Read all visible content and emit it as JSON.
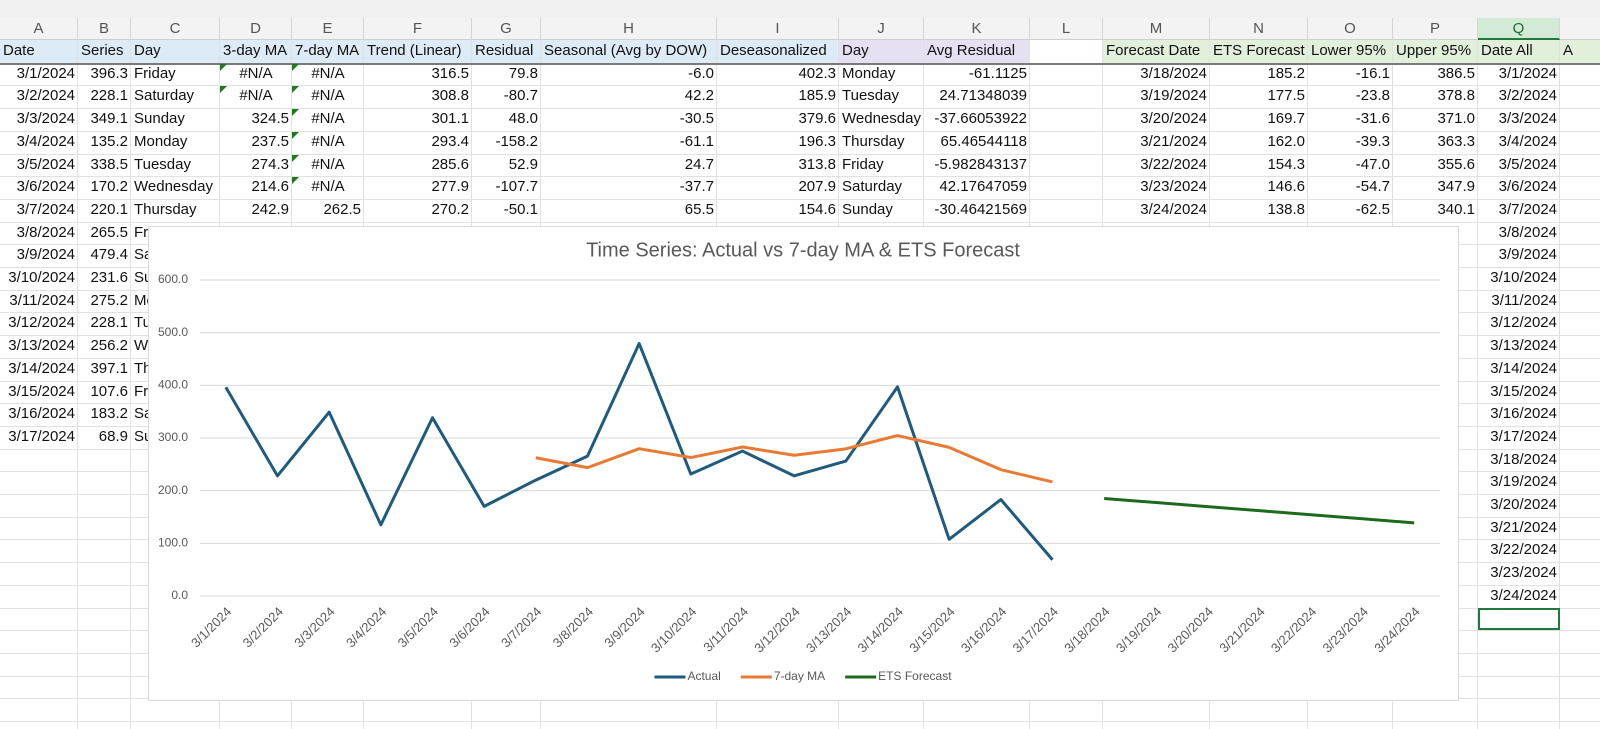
{
  "sheet": {
    "columns": [
      "A",
      "B",
      "C",
      "D",
      "E",
      "F",
      "G",
      "H",
      "I",
      "J",
      "K",
      "L",
      "M",
      "N",
      "O",
      "P",
      "Q"
    ],
    "header": [
      "Date",
      "Series",
      "Day",
      "3-day MA",
      "7-day MA",
      "Trend (Linear)",
      "Residual",
      "Seasonal (Avg by DOW)",
      "Deseasonalized",
      "Day",
      "Avg Residual",
      null,
      "Forecast Date",
      "ETS Forecast",
      "Lower 95%",
      "Upper 95%",
      "Date All",
      "A"
    ],
    "rows": [
      [
        "3/1/2024",
        "396.3",
        "Friday",
        "#N/A",
        "#N/A",
        "316.5",
        "79.8",
        "-6.0",
        "402.3",
        "Monday",
        "-61.1125",
        null,
        "3/18/2024",
        "185.2",
        "-16.1",
        "386.5",
        "3/1/2024"
      ],
      [
        "3/2/2024",
        "228.1",
        "Saturday",
        "#N/A",
        "#N/A",
        "308.8",
        "-80.7",
        "42.2",
        "185.9",
        "Tuesday",
        "24.71348039",
        null,
        "3/19/2024",
        "177.5",
        "-23.8",
        "378.8",
        "3/2/2024"
      ],
      [
        "3/3/2024",
        "349.1",
        "Sunday",
        "324.5",
        "#N/A",
        "301.1",
        "48.0",
        "-30.5",
        "379.6",
        "Wednesday",
        "-37.66053922",
        null,
        "3/20/2024",
        "169.7",
        "-31.6",
        "371.0",
        "3/3/2024"
      ],
      [
        "3/4/2024",
        "135.2",
        "Monday",
        "237.5",
        "#N/A",
        "293.4",
        "-158.2",
        "-61.1",
        "196.3",
        "Thursday",
        "65.46544118",
        null,
        "3/21/2024",
        "162.0",
        "-39.3",
        "363.3",
        "3/4/2024"
      ],
      [
        "3/5/2024",
        "338.5",
        "Tuesday",
        "274.3",
        "#N/A",
        "285.6",
        "52.9",
        "24.7",
        "313.8",
        "Friday",
        "-5.982843137",
        null,
        "3/22/2024",
        "154.3",
        "-47.0",
        "355.6",
        "3/5/2024"
      ],
      [
        "3/6/2024",
        "170.2",
        "Wednesday",
        "214.6",
        "#N/A",
        "277.9",
        "-107.7",
        "-37.7",
        "207.9",
        "Saturday",
        "42.17647059",
        null,
        "3/23/2024",
        "146.6",
        "-54.7",
        "347.9",
        "3/6/2024"
      ],
      [
        "3/7/2024",
        "220.1",
        "Thursday",
        "242.9",
        "262.5",
        "270.2",
        "-50.1",
        "65.5",
        "154.6",
        "Sunday",
        "-30.46421569",
        null,
        "3/24/2024",
        "138.8",
        "-62.5",
        "340.1",
        "3/7/2024"
      ],
      [
        "3/8/2024",
        "265.5",
        "Friday",
        null,
        null,
        null,
        null,
        null,
        null,
        null,
        null,
        null,
        null,
        null,
        null,
        null,
        "3/8/2024"
      ],
      [
        "3/9/2024",
        "479.4",
        "Saturday",
        null,
        null,
        null,
        null,
        null,
        null,
        null,
        null,
        null,
        null,
        null,
        null,
        null,
        "3/9/2024"
      ],
      [
        "3/10/2024",
        "231.6",
        "Sunday",
        null,
        null,
        null,
        null,
        null,
        null,
        null,
        null,
        null,
        null,
        null,
        null,
        null,
        "3/10/2024"
      ],
      [
        "3/11/2024",
        "275.2",
        "Monday",
        null,
        null,
        null,
        null,
        null,
        null,
        null,
        null,
        null,
        null,
        null,
        null,
        null,
        "3/11/2024"
      ],
      [
        "3/12/2024",
        "228.1",
        "Tuesday",
        null,
        null,
        null,
        null,
        null,
        null,
        null,
        null,
        null,
        null,
        null,
        null,
        null,
        "3/12/2024"
      ],
      [
        "3/13/2024",
        "256.2",
        "Wednesday",
        null,
        null,
        null,
        null,
        null,
        null,
        null,
        null,
        null,
        null,
        null,
        null,
        null,
        "3/13/2024"
      ],
      [
        "3/14/2024",
        "397.1",
        "Thursday",
        null,
        null,
        null,
        null,
        null,
        null,
        null,
        null,
        null,
        null,
        null,
        null,
        null,
        "3/14/2024"
      ],
      [
        "3/15/2024",
        "107.6",
        "Friday",
        null,
        null,
        null,
        null,
        null,
        null,
        null,
        null,
        null,
        null,
        null,
        null,
        null,
        "3/15/2024"
      ],
      [
        "3/16/2024",
        "183.2",
        "Saturday",
        null,
        null,
        null,
        null,
        null,
        null,
        null,
        null,
        null,
        null,
        null,
        null,
        null,
        "3/16/2024"
      ],
      [
        "3/17/2024",
        "68.9",
        "Sunday",
        null,
        null,
        null,
        null,
        null,
        null,
        null,
        null,
        null,
        null,
        null,
        null,
        null,
        "3/17/2024"
      ],
      [
        null,
        null,
        null,
        null,
        null,
        null,
        null,
        null,
        null,
        null,
        null,
        null,
        null,
        null,
        null,
        null,
        "3/18/2024"
      ],
      [
        null,
        null,
        null,
        null,
        null,
        null,
        null,
        null,
        null,
        null,
        null,
        null,
        null,
        null,
        null,
        null,
        "3/19/2024"
      ],
      [
        null,
        null,
        null,
        null,
        null,
        null,
        null,
        null,
        null,
        null,
        null,
        null,
        null,
        null,
        null,
        null,
        "3/20/2024"
      ],
      [
        null,
        null,
        null,
        null,
        null,
        null,
        null,
        null,
        null,
        null,
        null,
        null,
        null,
        null,
        null,
        null,
        "3/21/2024"
      ],
      [
        null,
        null,
        null,
        null,
        null,
        null,
        null,
        null,
        null,
        null,
        null,
        null,
        null,
        null,
        null,
        null,
        "3/22/2024"
      ],
      [
        null,
        null,
        null,
        null,
        null,
        null,
        null,
        null,
        null,
        null,
        null,
        null,
        null,
        null,
        null,
        null,
        "3/23/2024"
      ],
      [
        null,
        null,
        null,
        null,
        null,
        null,
        null,
        null,
        null,
        null,
        null,
        null,
        null,
        null,
        null,
        null,
        "3/24/2024"
      ]
    ]
  },
  "chart_data": {
    "type": "line",
    "title": "Time Series: Actual vs 7-day MA & ETS Forecast",
    "categories": [
      "3/1/2024",
      "3/2/2024",
      "3/3/2024",
      "3/4/2024",
      "3/5/2024",
      "3/6/2024",
      "3/7/2024",
      "3/8/2024",
      "3/9/2024",
      "3/10/2024",
      "3/11/2024",
      "3/12/2024",
      "3/13/2024",
      "3/14/2024",
      "3/15/2024",
      "3/16/2024",
      "3/17/2024",
      "3/18/2024",
      "3/19/2024",
      "3/20/2024",
      "3/21/2024",
      "3/22/2024",
      "3/23/2024",
      "3/24/2024"
    ],
    "series": [
      {
        "name": "Actual",
        "color": "#1f5b7e",
        "values": [
          396.3,
          228.1,
          349.1,
          135.2,
          338.5,
          170.2,
          220.1,
          265.5,
          479.4,
          231.6,
          275.2,
          228.1,
          256.2,
          397.1,
          107.6,
          183.2,
          68.9,
          null,
          null,
          null,
          null,
          null,
          null,
          null
        ]
      },
      {
        "name": "7-day MA",
        "color": "#e87a33",
        "values": [
          null,
          null,
          null,
          null,
          null,
          null,
          262.5,
          243.8,
          279.7,
          262.9,
          282.9,
          267.2,
          279.4,
          304.7,
          282.2,
          239.9,
          216.6,
          null,
          null,
          null,
          null,
          null,
          null,
          null
        ]
      },
      {
        "name": "ETS Forecast",
        "color": "#1d6a1d",
        "values": [
          null,
          null,
          null,
          null,
          null,
          null,
          null,
          null,
          null,
          null,
          null,
          null,
          null,
          null,
          null,
          null,
          null,
          185.2,
          177.5,
          169.7,
          162.0,
          154.3,
          146.6,
          138.8
        ]
      }
    ],
    "ylim": [
      0,
      600
    ],
    "yticks": [
      {
        "value": 0,
        "label": "0.0"
      },
      {
        "value": 100,
        "label": "100.0"
      },
      {
        "value": 200,
        "label": "200.0"
      },
      {
        "value": 300,
        "label": "300.0"
      },
      {
        "value": 400,
        "label": "400.0"
      },
      {
        "value": 500,
        "label": "500.0"
      },
      {
        "value": 600,
        "label": "600.0"
      }
    ],
    "grid": true,
    "legend": "bottom"
  }
}
